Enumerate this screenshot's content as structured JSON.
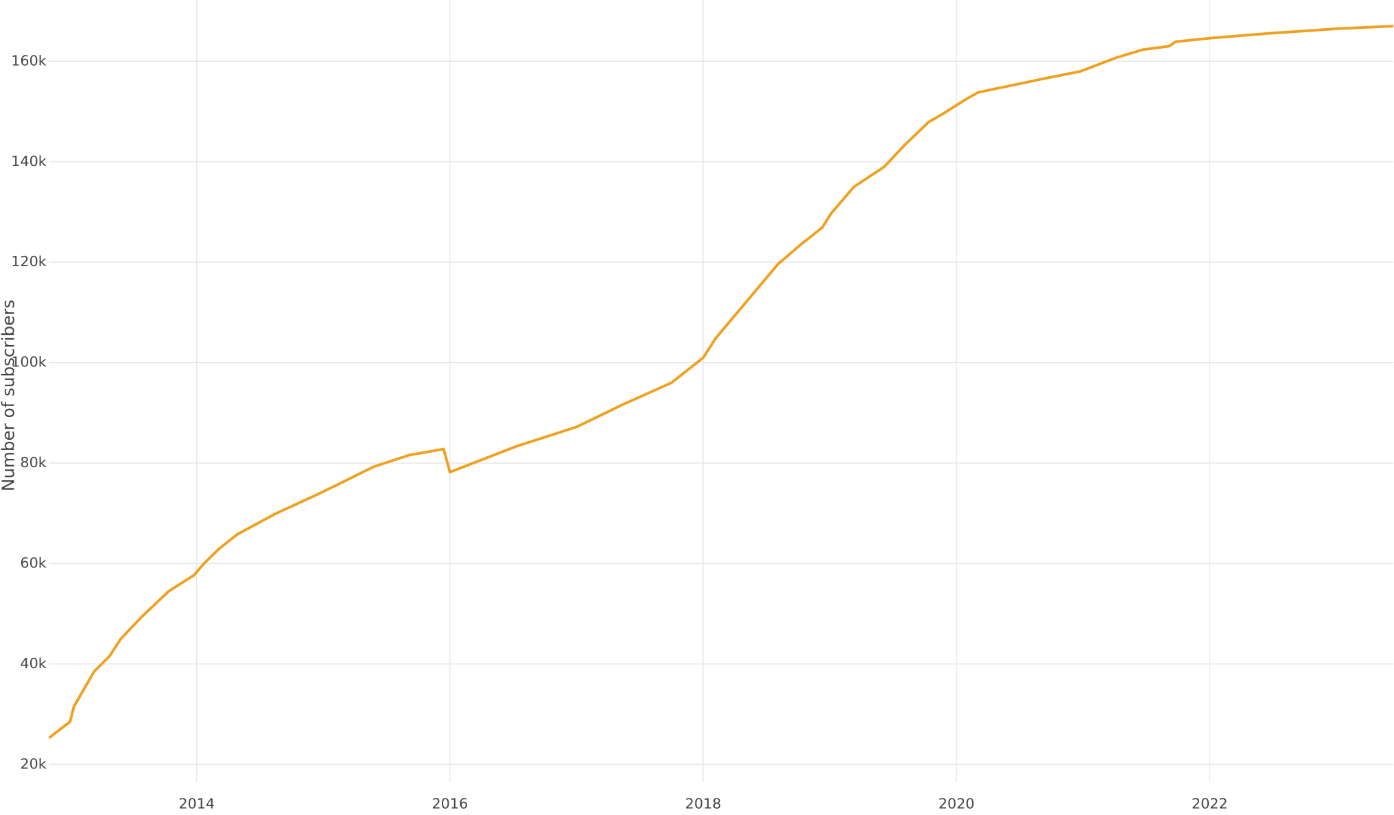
{
  "chart_data": {
    "type": "line",
    "y_label": "Number of subscribers",
    "x": [
      2012.835,
      2013.0,
      2013.03,
      2013.19,
      2013.31,
      2013.4,
      2013.57,
      2013.78,
      2013.98,
      2014.05,
      2014.17,
      2014.32,
      2014.62,
      2014.94,
      2015.12,
      2015.4,
      2015.68,
      2015.95,
      2016.0,
      2016.52,
      2017.0,
      2017.36,
      2017.75,
      2018.0,
      2018.1,
      2018.59,
      2018.77,
      2018.94,
      2019.01,
      2019.19,
      2019.43,
      2019.59,
      2019.78,
      2019.89,
      2020.06,
      2020.17,
      2020.7,
      2020.98,
      2021.26,
      2021.47,
      2021.68,
      2021.73,
      2022.0,
      2022.49,
      2023.02,
      2023.45
    ],
    "series": [
      {
        "color": "#efa01f",
        "values": [
          25300,
          28500,
          31500,
          38500,
          41500,
          45000,
          49500,
          54500,
          57700,
          59800,
          62800,
          65800,
          69900,
          73600,
          75800,
          79300,
          81600,
          82800,
          78200,
          83300,
          87200,
          91600,
          96000,
          101000,
          104900,
          119600,
          123500,
          126900,
          129700,
          135000,
          139000,
          143300,
          147900,
          149500,
          152200,
          153800,
          156600,
          158000,
          160700,
          162300,
          163000,
          163900,
          164600,
          165600,
          166500,
          167000
        ]
      }
    ],
    "xlim": [
      2012.835,
      2023.453
    ],
    "xticks": [
      2014,
      2016,
      2018,
      2020,
      2022
    ],
    "ylim": [
      16500,
      172200
    ],
    "yticks": [
      {
        "value": 20000,
        "label": "20k"
      },
      {
        "value": 40000,
        "label": "40k"
      },
      {
        "value": 60000,
        "label": "60k"
      },
      {
        "value": 80000,
        "label": "80k"
      },
      {
        "value": 100000,
        "label": "100k"
      },
      {
        "value": 120000,
        "label": "120k"
      },
      {
        "value": 140000,
        "label": "140k"
      },
      {
        "value": 160000,
        "label": "160k"
      }
    ],
    "grid": true
  }
}
